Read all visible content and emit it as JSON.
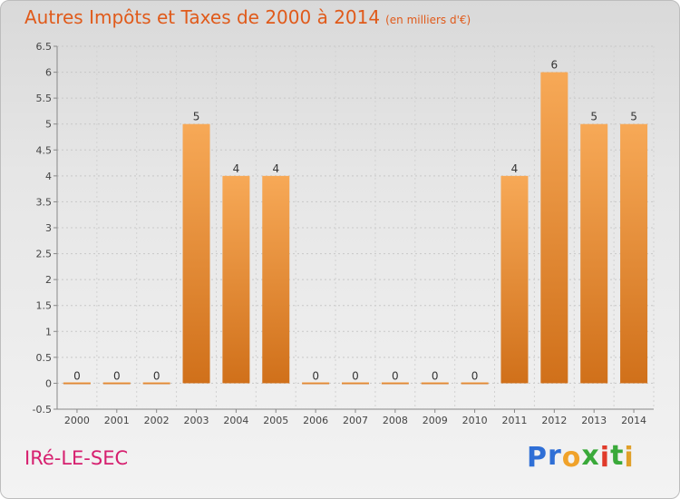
{
  "page": {
    "title": "Autres Impôts et Taxes de 2000 à 2014",
    "subtitle": "(en milliers d'€)",
    "commune": "IRé-LE-SEC",
    "brand": [
      "P",
      "r",
      "o",
      "x",
      "i",
      "t",
      "i"
    ],
    "brand_colors": [
      "#2f6fd6",
      "#2f6fd6",
      "#f0a22a",
      "#3aa93a",
      "#e03a2a",
      "#3aa93a",
      "#e0a02a"
    ]
  },
  "chart_data": {
    "type": "bar",
    "title": "Autres Impôts et Taxes de 2000 à 2014",
    "categories": [
      "2000",
      "2001",
      "2002",
      "2003",
      "2004",
      "2005",
      "2006",
      "2007",
      "2008",
      "2009",
      "2010",
      "2011",
      "2012",
      "2013",
      "2014"
    ],
    "values": [
      0,
      0,
      0,
      5,
      4,
      4,
      0,
      0,
      0,
      0,
      0,
      4,
      6,
      5,
      5
    ],
    "ylim": [
      -0.5,
      6.5
    ],
    "yticks": [
      "-0.5",
      "0",
      "0.5",
      "1",
      "1.5",
      "2",
      "2.5",
      "3",
      "3.5",
      "4",
      "4.5",
      "5",
      "5.5",
      "6",
      "6.5"
    ],
    "grid": true,
    "colors": {
      "bar_top": "#f7a957",
      "bar_bottom": "#d0701a",
      "label": "#333333"
    }
  }
}
